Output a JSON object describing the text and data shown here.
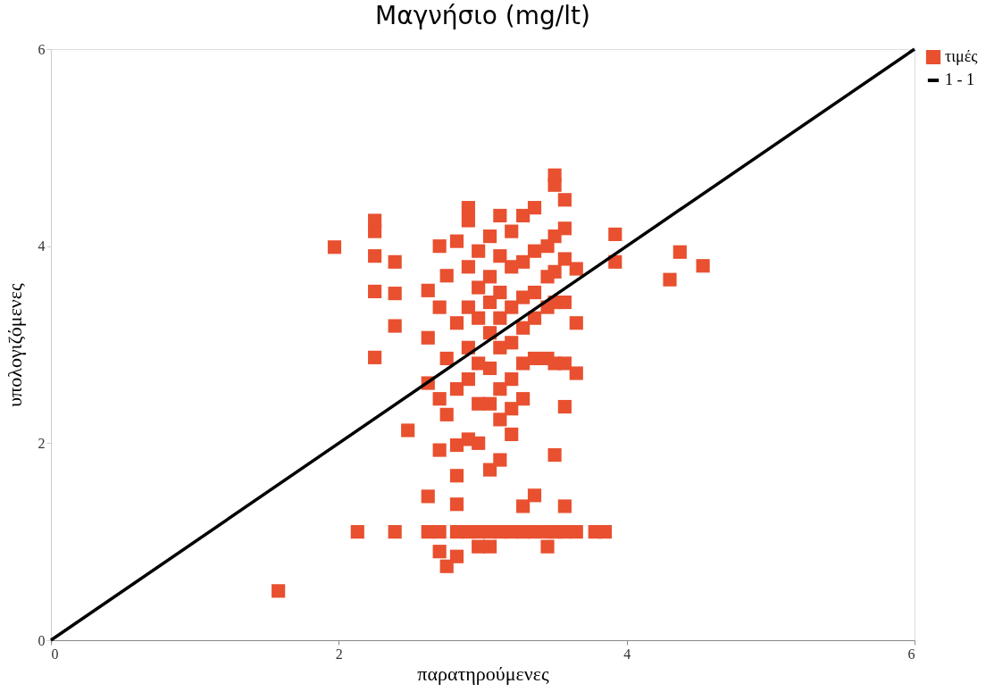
{
  "chart_data": {
    "type": "scatter",
    "title": "Μαγνήσιο (mg/lt)",
    "xlabel": "παρατηρούμενες",
    "ylabel": "υπολογιζόμενες",
    "xlim": [
      0,
      6
    ],
    "ylim": [
      0,
      6
    ],
    "xticks": [
      0,
      2,
      4,
      6
    ],
    "yticks": [
      0,
      2,
      4,
      6
    ],
    "grid": false,
    "legend": "top right",
    "marker": "square",
    "series": [
      {
        "name": "τιμές",
        "color": "#e8502f",
        "x": [
          1.58,
          1.97,
          2.13,
          2.39,
          2.25,
          2.25,
          2.25,
          2.25,
          2.25,
          2.39,
          2.39,
          2.39,
          2.48,
          2.62,
          2.62,
          2.62,
          2.62,
          2.62,
          2.7,
          2.7,
          2.7,
          2.7,
          2.7,
          2.7,
          2.75,
          2.75,
          2.75,
          2.75,
          2.82,
          2.82,
          2.82,
          2.82,
          2.82,
          2.82,
          2.82,
          2.82,
          2.9,
          2.9,
          2.9,
          2.9,
          2.9,
          2.9,
          2.9,
          2.9,
          2.97,
          2.97,
          2.97,
          2.97,
          2.97,
          2.97,
          2.97,
          2.97,
          3.05,
          3.05,
          3.05,
          3.05,
          3.05,
          3.05,
          3.05,
          3.05,
          3.05,
          3.12,
          3.12,
          3.12,
          3.12,
          3.12,
          3.12,
          3.12,
          3.12,
          3.12,
          3.2,
          3.2,
          3.2,
          3.2,
          3.2,
          3.2,
          3.2,
          3.2,
          3.28,
          3.28,
          3.28,
          3.28,
          3.28,
          3.28,
          3.28,
          3.28,
          3.36,
          3.36,
          3.36,
          3.36,
          3.36,
          3.36,
          3.36,
          3.45,
          3.45,
          3.45,
          3.45,
          3.45,
          3.45,
          3.5,
          3.5,
          3.5,
          3.5,
          3.5,
          3.5,
          3.5,
          3.5,
          3.57,
          3.57,
          3.57,
          3.57,
          3.57,
          3.57,
          3.57,
          3.57,
          3.65,
          3.65,
          3.65,
          3.65,
          3.78,
          3.85,
          3.92,
          3.92,
          4.3,
          4.37,
          4.53
        ],
        "values": [
          0.5,
          3.99,
          1.1,
          1.1,
          4.26,
          4.15,
          3.9,
          3.54,
          2.87,
          3.84,
          3.52,
          3.19,
          2.13,
          3.55,
          3.07,
          2.61,
          1.46,
          1.1,
          4.0,
          3.38,
          2.45,
          1.93,
          1.1,
          0.9,
          3.7,
          2.86,
          2.29,
          0.75,
          4.05,
          3.22,
          2.55,
          1.98,
          1.67,
          1.38,
          1.1,
          0.85,
          4.39,
          4.26,
          3.79,
          3.38,
          2.97,
          2.65,
          2.04,
          1.1,
          3.95,
          3.58,
          3.27,
          2.81,
          2.4,
          2.0,
          1.1,
          0.95,
          4.1,
          3.69,
          3.43,
          3.12,
          2.76,
          2.4,
          1.73,
          1.1,
          0.95,
          4.31,
          3.9,
          3.53,
          3.27,
          2.97,
          2.55,
          2.24,
          1.83,
          1.1,
          4.15,
          3.79,
          3.38,
          3.02,
          2.65,
          2.35,
          2.09,
          1.1,
          4.31,
          3.84,
          3.48,
          3.17,
          2.81,
          2.45,
          1.36,
          1.1,
          4.39,
          3.95,
          3.53,
          3.27,
          2.86,
          1.47,
          1.1,
          4.0,
          3.69,
          3.38,
          2.86,
          1.1,
          0.95,
          4.72,
          4.62,
          4.1,
          3.74,
          3.43,
          2.81,
          1.88,
          1.1,
          4.47,
          4.18,
          3.87,
          3.43,
          2.81,
          2.37,
          1.36,
          1.1,
          3.77,
          3.22,
          2.71,
          1.1,
          1.1,
          1.1,
          4.12,
          3.84,
          3.66,
          3.94,
          3.8
        ]
      },
      {
        "name": "1 - 1",
        "color": "#000000",
        "type": "line",
        "marker": "none",
        "line_style": "solid",
        "x": [
          0,
          6
        ],
        "values": [
          0,
          6
        ]
      }
    ]
  }
}
